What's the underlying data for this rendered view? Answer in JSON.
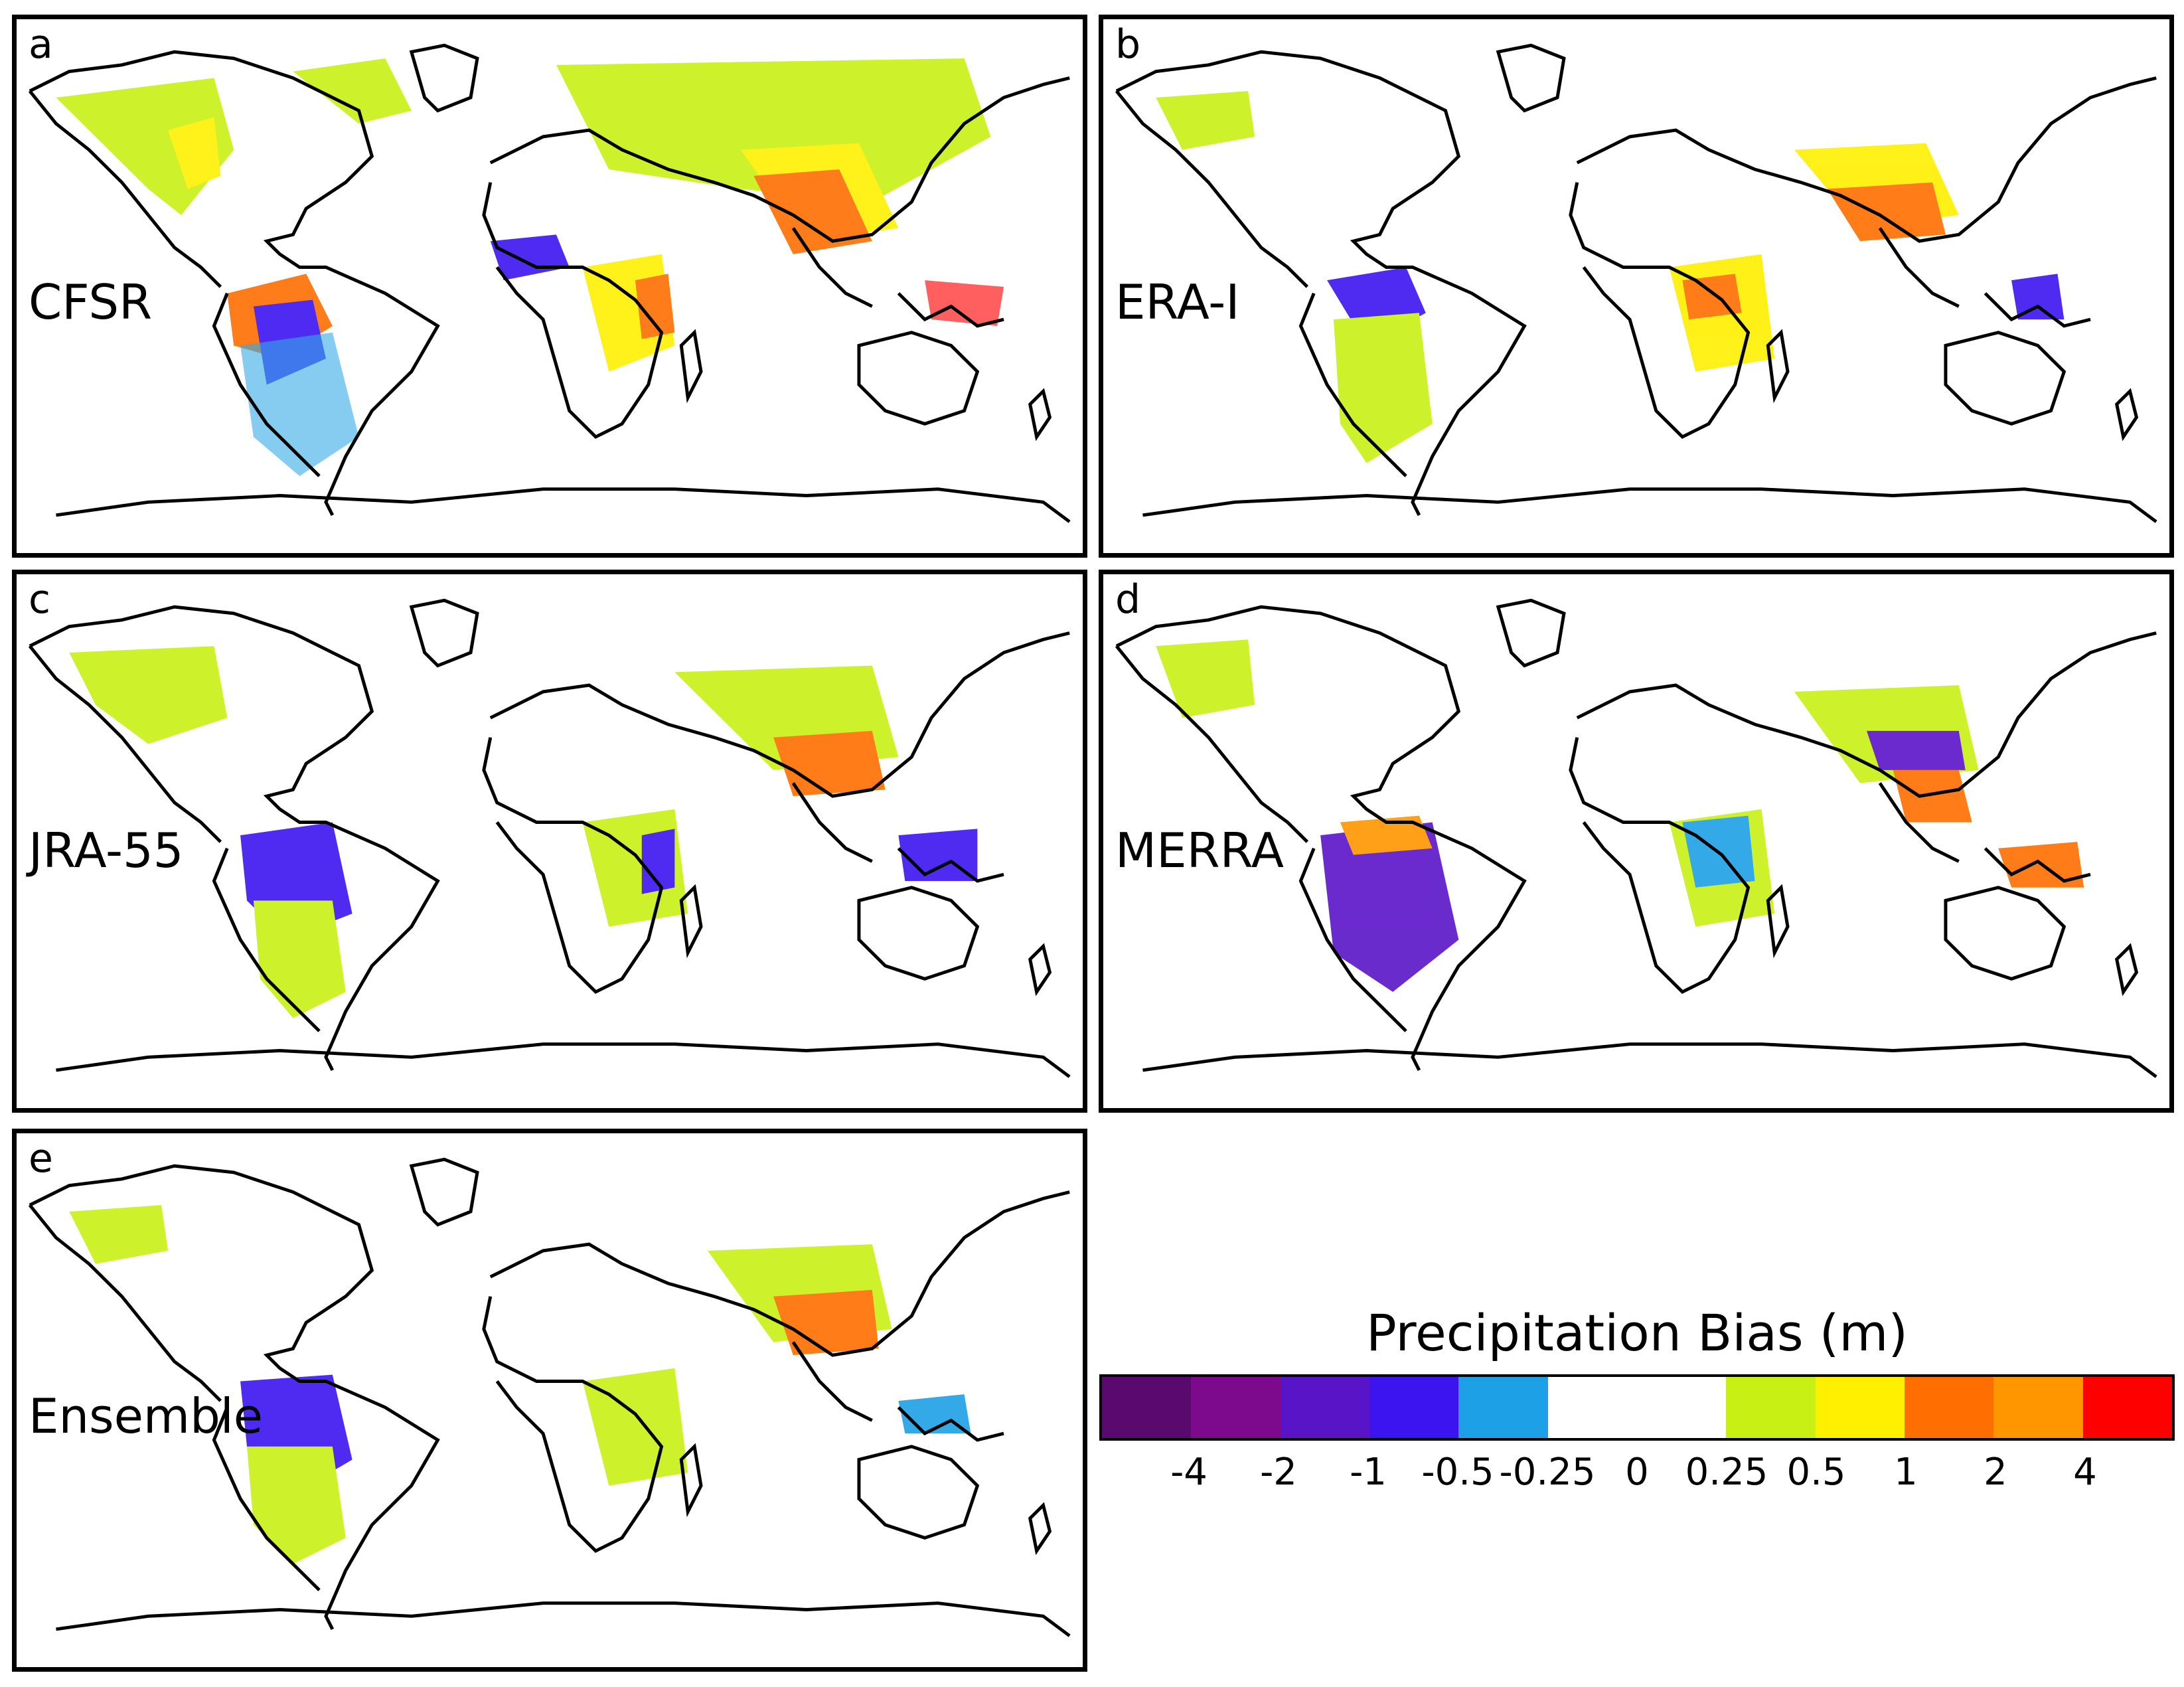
{
  "panels": [
    {
      "letter": "a",
      "model": "CFSR"
    },
    {
      "letter": "b",
      "model": "ERA-I"
    },
    {
      "letter": "c",
      "model": "JRA-55"
    },
    {
      "letter": "d",
      "model": "MERRA"
    },
    {
      "letter": "e",
      "model": "Ensemble"
    }
  ],
  "legend": {
    "title": "Precipitation Bias (m)",
    "colors": [
      "#5a0a6e",
      "#7d0a8c",
      "#5a14c8",
      "#3c14f0",
      "#1ea0e6",
      "#ffffff",
      "#ffffff",
      "#c8f014",
      "#fff000",
      "#ff6e00",
      "#ff9600",
      "#ff0000"
    ],
    "ticks": [
      "-4",
      "-2",
      "-1",
      "-0.5",
      "-0.25",
      "0",
      "0.25",
      "0.5",
      "1",
      "2",
      "4"
    ]
  },
  "colors": {
    "frame": "#000000",
    "coast": "#000000"
  }
}
